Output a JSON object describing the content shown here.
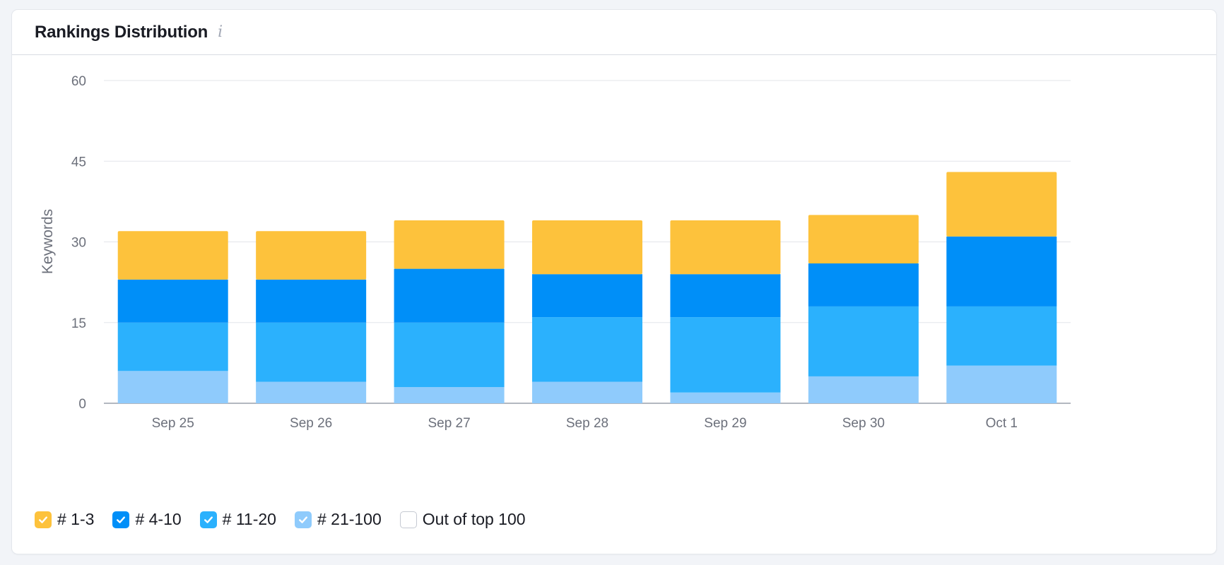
{
  "header": {
    "title": "Rankings Distribution",
    "info_icon": "info-icon"
  },
  "chart_data": {
    "type": "bar",
    "stacked": true,
    "ylabel": "Keywords",
    "ylim": [
      0,
      60
    ],
    "yticks": [
      0,
      15,
      30,
      45,
      60
    ],
    "grid": true,
    "categories": [
      "Sep 25",
      "Sep 26",
      "Sep 27",
      "Sep 28",
      "Sep 29",
      "Sep 30",
      "Oct 1"
    ],
    "series": [
      {
        "name": "# 21-100",
        "color": "#8fcbfc",
        "values": [
          6,
          4,
          3,
          4,
          2,
          5,
          7
        ]
      },
      {
        "name": "# 11-20",
        "color": "#2bb1fd",
        "values": [
          9,
          11,
          12,
          12,
          14,
          13,
          11
        ]
      },
      {
        "name": "# 4-10",
        "color": "#008ff8",
        "values": [
          8,
          8,
          10,
          8,
          8,
          8,
          13
        ]
      },
      {
        "name": "# 1-3",
        "color": "#fdc23c",
        "values": [
          9,
          9,
          9,
          10,
          10,
          9,
          12
        ]
      }
    ]
  },
  "legend": {
    "placement": "bottom-left",
    "items": [
      {
        "label": "# 1-3",
        "color": "#fdc23c",
        "checked": true
      },
      {
        "label": "# 4-10",
        "color": "#008ff8",
        "checked": true
      },
      {
        "label": "# 11-20",
        "color": "#2bb1fd",
        "checked": true
      },
      {
        "label": "# 21-100",
        "color": "#8fcbfc",
        "checked": true
      },
      {
        "label": "Out of top 100",
        "color": "#ffffff",
        "checked": false
      }
    ]
  }
}
